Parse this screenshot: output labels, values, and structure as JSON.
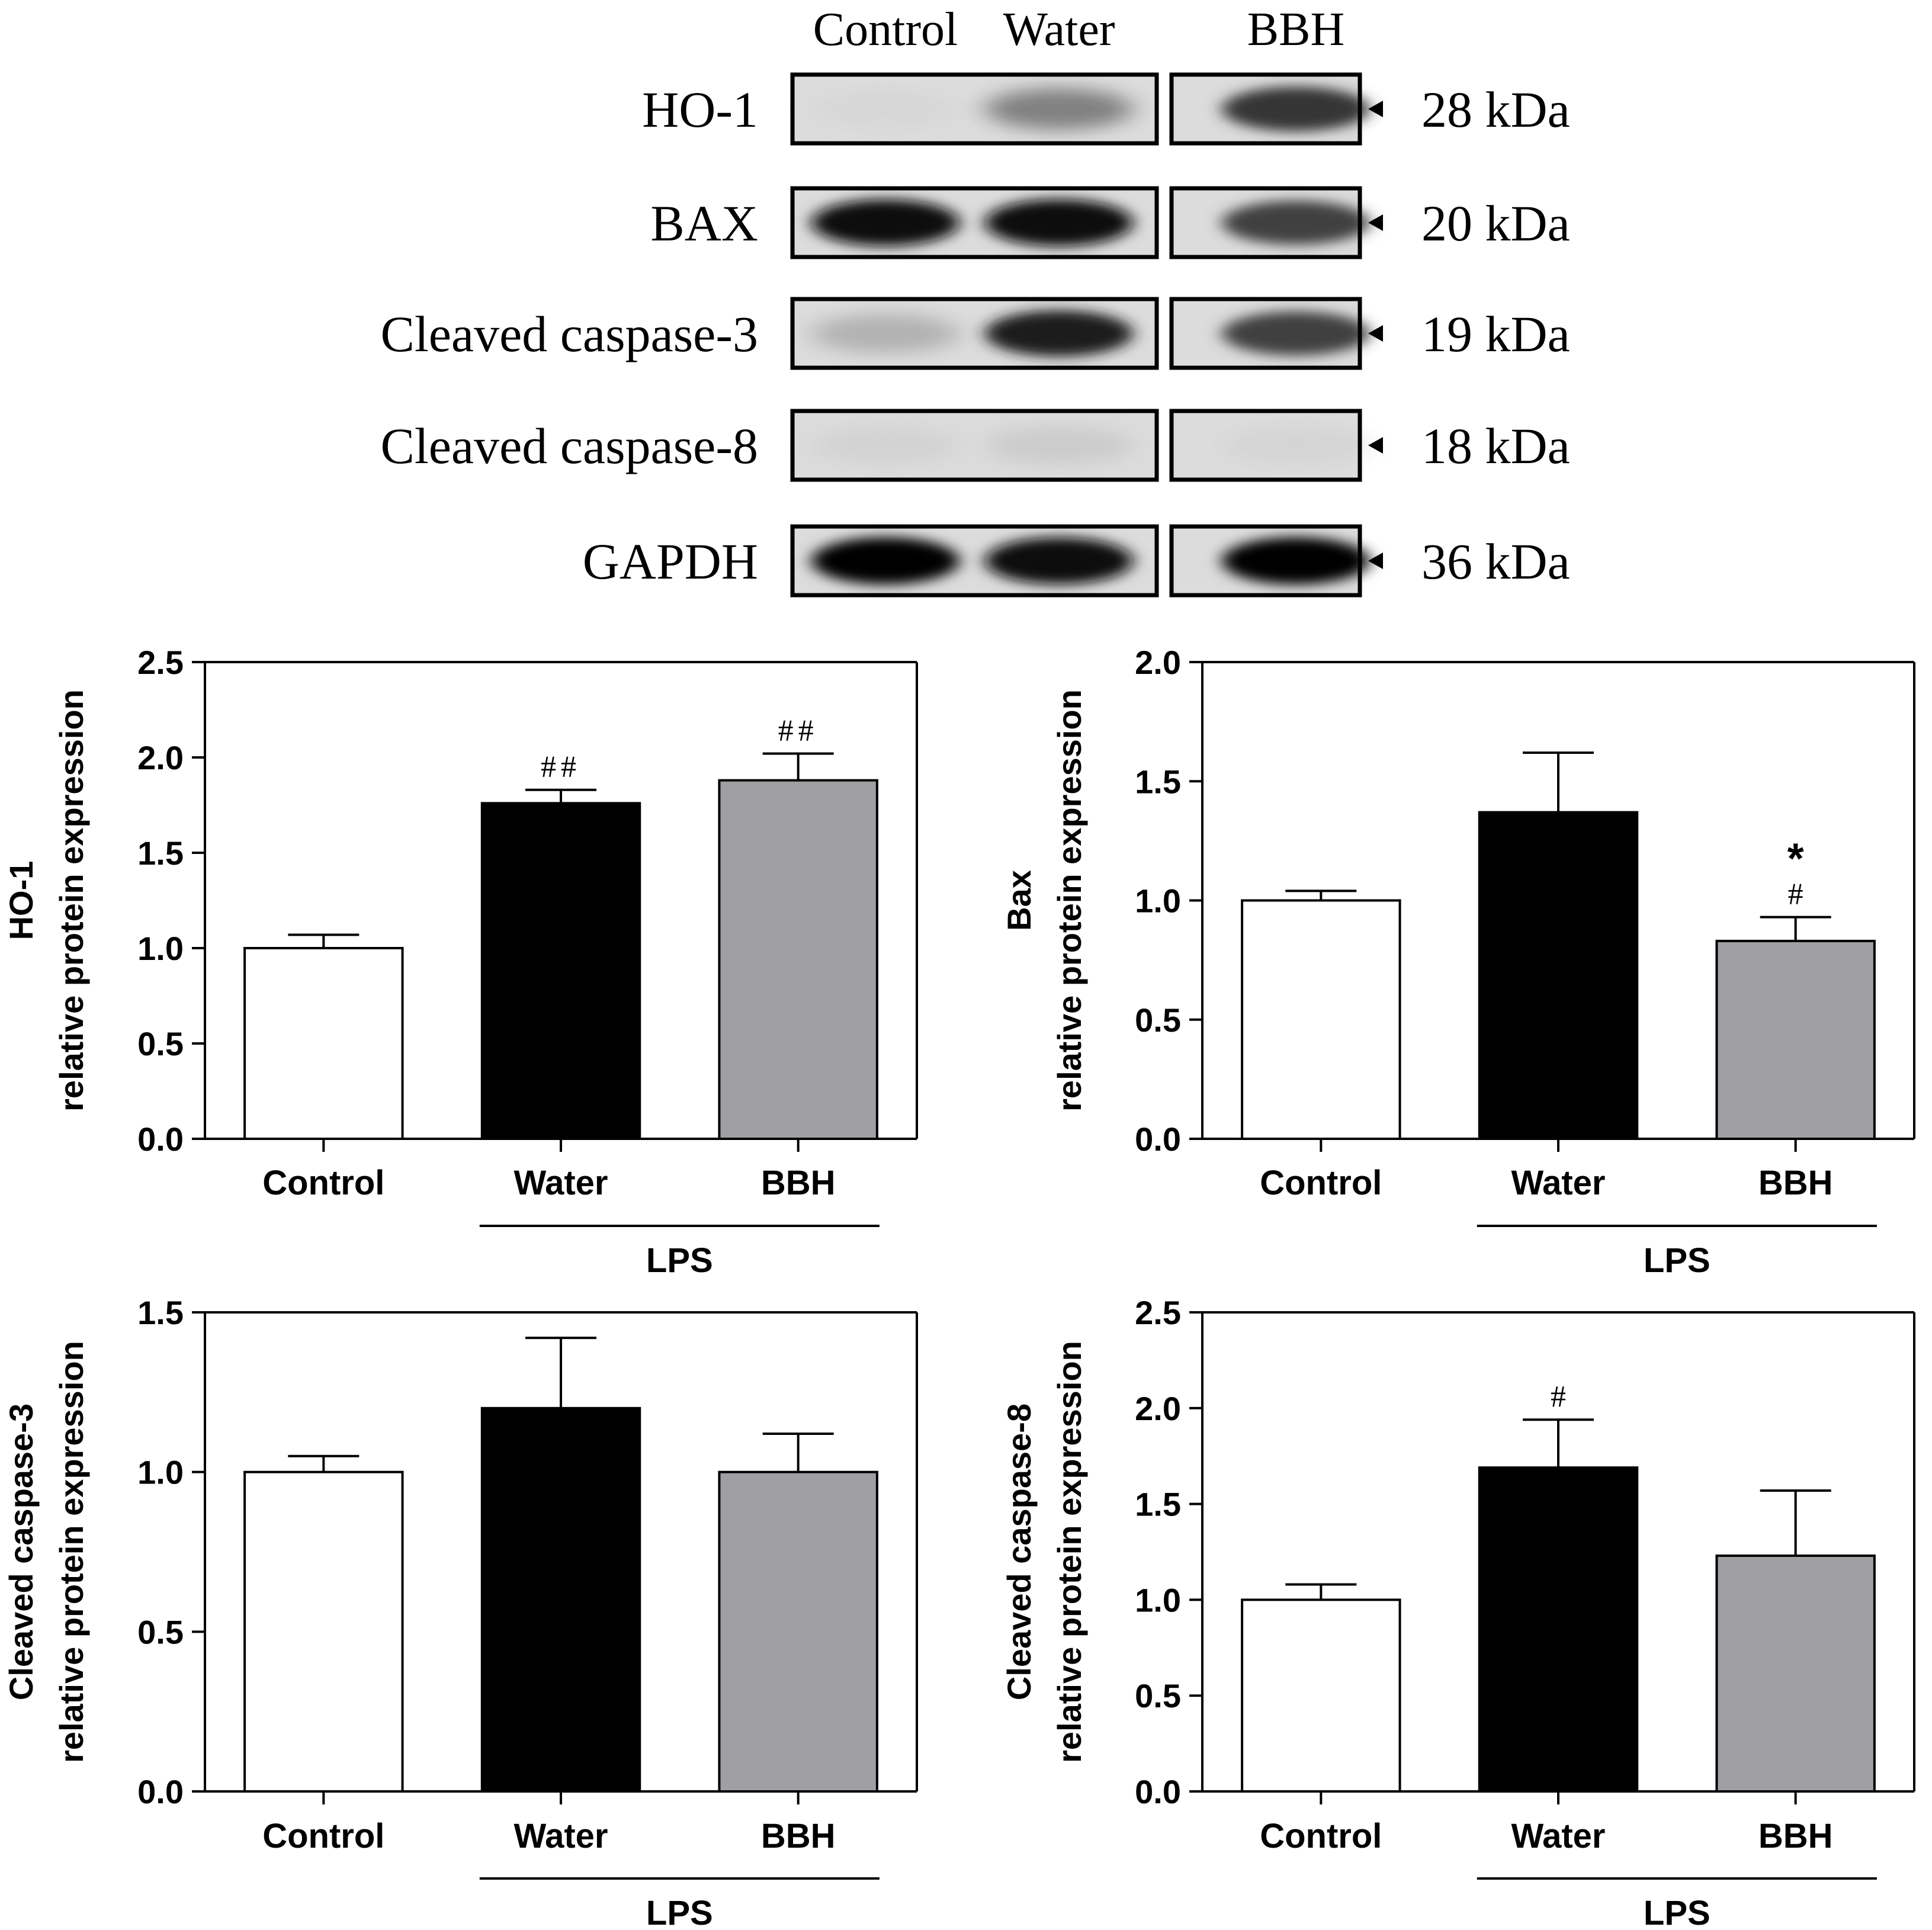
{
  "blot": {
    "lane_labels": [
      "Control",
      "Water",
      "BBH"
    ],
    "rows": [
      {
        "protein": "HO-1",
        "mw": "28 kDa",
        "intensity": [
          0.06,
          0.5,
          0.78
        ]
      },
      {
        "protein": "BAX",
        "mw": "20 kDa",
        "intensity": [
          0.95,
          0.98,
          0.72
        ]
      },
      {
        "protein": "Cleaved caspase-3",
        "mw": "19 kDa",
        "intensity": [
          0.3,
          0.9,
          0.72
        ]
      },
      {
        "protein": "Cleaved caspase-8",
        "mw": "18 kDa",
        "intensity": [
          0.1,
          0.15,
          0.08
        ]
      },
      {
        "protein": "GAPDH",
        "mw": "36 kDa",
        "intensity": [
          1.0,
          0.98,
          1.0
        ]
      }
    ]
  },
  "chart_data": [
    {
      "type": "bar",
      "ylabel_lines": [
        "HO-1",
        "relative protein expression"
      ],
      "categories": [
        "Control",
        "Water",
        "BBH"
      ],
      "values": [
        1.0,
        1.76,
        1.88
      ],
      "errors": [
        0.07,
        0.07,
        0.14
      ],
      "fills": [
        "#ffffff",
        "#000000",
        "#a0a0a4"
      ],
      "annotations": [
        [],
        [
          "##"
        ],
        [
          "##"
        ]
      ],
      "ylim": [
        0,
        2.5
      ],
      "yticks": [
        "0.0",
        "0.5",
        "1.0",
        "1.5",
        "2.0",
        "2.5"
      ],
      "group_label": "LPS"
    },
    {
      "type": "bar",
      "ylabel_lines": [
        "Bax",
        "relative protein expression"
      ],
      "categories": [
        "Control",
        "Water",
        "BBH"
      ],
      "values": [
        1.0,
        1.37,
        0.83
      ],
      "errors": [
        0.04,
        0.25,
        0.1
      ],
      "fills": [
        "#ffffff",
        "#000000",
        "#a0a0a4"
      ],
      "annotations": [
        [],
        [],
        [
          "#",
          "*"
        ]
      ],
      "ylim": [
        0,
        2.0
      ],
      "yticks": [
        "0.0",
        "0.5",
        "1.0",
        "1.5",
        "2.0"
      ],
      "group_label": "LPS"
    },
    {
      "type": "bar",
      "ylabel_lines": [
        "Cleaved caspase-3",
        "relative protein expression"
      ],
      "categories": [
        "Control",
        "Water",
        "BBH"
      ],
      "values": [
        1.0,
        1.2,
        1.0
      ],
      "errors": [
        0.05,
        0.22,
        0.12
      ],
      "fills": [
        "#ffffff",
        "#000000",
        "#a0a0a4"
      ],
      "annotations": [
        [],
        [],
        []
      ],
      "ylim": [
        0,
        1.5
      ],
      "yticks": [
        "0.0",
        "0.5",
        "1.0",
        "1.5"
      ],
      "group_label": "LPS"
    },
    {
      "type": "bar",
      "ylabel_lines": [
        "Cleaved caspase-8",
        "relative protein expression"
      ],
      "categories": [
        "Control",
        "Water",
        "BBH"
      ],
      "values": [
        1.0,
        1.69,
        1.23
      ],
      "errors": [
        0.08,
        0.25,
        0.34
      ],
      "fills": [
        "#ffffff",
        "#000000",
        "#a0a0a4"
      ],
      "annotations": [
        [],
        [
          "#"
        ],
        []
      ],
      "ylim": [
        0,
        2.5
      ],
      "yticks": [
        "0.0",
        "0.5",
        "1.0",
        "1.5",
        "2.0",
        "2.5"
      ],
      "group_label": "LPS"
    }
  ]
}
